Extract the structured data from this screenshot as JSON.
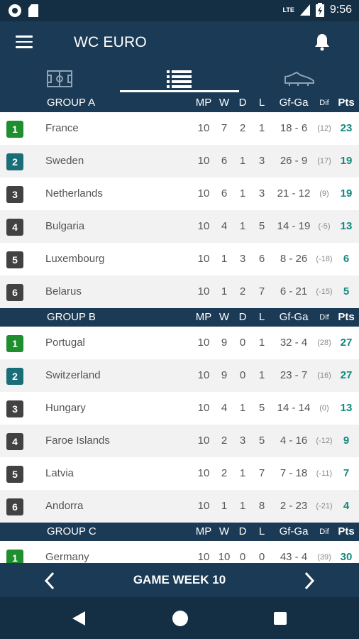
{
  "status": {
    "network": "LTE",
    "time": "9:56"
  },
  "app": {
    "title": "WC EURO"
  },
  "columns": {
    "mp": "MP",
    "w": "W",
    "d": "D",
    "l": "L",
    "gfga": "Gf-Ga",
    "dif": "Dif",
    "pts": "Pts"
  },
  "colors": {
    "rank1": "#1e8e2e",
    "rank2": "#1a6e78",
    "rank_default": "#424242",
    "header": "#1b3a55",
    "pts": "#12897e"
  },
  "groups": [
    {
      "name": "GROUP A",
      "rows": [
        {
          "rank": "1",
          "team": "France",
          "mp": "10",
          "w": "7",
          "d": "2",
          "l": "1",
          "gfga": "18 - 6",
          "dif": "(12)",
          "pts": "23"
        },
        {
          "rank": "2",
          "team": "Sweden",
          "mp": "10",
          "w": "6",
          "d": "1",
          "l": "3",
          "gfga": "26 - 9",
          "dif": "(17)",
          "pts": "19"
        },
        {
          "rank": "3",
          "team": "Netherlands",
          "mp": "10",
          "w": "6",
          "d": "1",
          "l": "3",
          "gfga": "21 - 12",
          "dif": "(9)",
          "pts": "19"
        },
        {
          "rank": "4",
          "team": "Bulgaria",
          "mp": "10",
          "w": "4",
          "d": "1",
          "l": "5",
          "gfga": "14 - 19",
          "dif": "(-5)",
          "pts": "13"
        },
        {
          "rank": "5",
          "team": "Luxembourg",
          "mp": "10",
          "w": "1",
          "d": "3",
          "l": "6",
          "gfga": "8 - 26",
          "dif": "(-18)",
          "pts": "6"
        },
        {
          "rank": "6",
          "team": "Belarus",
          "mp": "10",
          "w": "1",
          "d": "2",
          "l": "7",
          "gfga": "6 - 21",
          "dif": "(-15)",
          "pts": "5"
        }
      ]
    },
    {
      "name": "GROUP B",
      "rows": [
        {
          "rank": "1",
          "team": "Portugal",
          "mp": "10",
          "w": "9",
          "d": "0",
          "l": "1",
          "gfga": "32 - 4",
          "dif": "(28)",
          "pts": "27"
        },
        {
          "rank": "2",
          "team": "Switzerland",
          "mp": "10",
          "w": "9",
          "d": "0",
          "l": "1",
          "gfga": "23 - 7",
          "dif": "(16)",
          "pts": "27"
        },
        {
          "rank": "3",
          "team": "Hungary",
          "mp": "10",
          "w": "4",
          "d": "1",
          "l": "5",
          "gfga": "14 - 14",
          "dif": "(0)",
          "pts": "13"
        },
        {
          "rank": "4",
          "team": "Faroe Islands",
          "mp": "10",
          "w": "2",
          "d": "3",
          "l": "5",
          "gfga": "4 - 16",
          "dif": "(-12)",
          "pts": "9"
        },
        {
          "rank": "5",
          "team": "Latvia",
          "mp": "10",
          "w": "2",
          "d": "1",
          "l": "7",
          "gfga": "7 - 18",
          "dif": "(-11)",
          "pts": "7"
        },
        {
          "rank": "6",
          "team": "Andorra",
          "mp": "10",
          "w": "1",
          "d": "1",
          "l": "8",
          "gfga": "2 - 23",
          "dif": "(-21)",
          "pts": "4"
        }
      ]
    },
    {
      "name": "GROUP C",
      "rows": [
        {
          "rank": "1",
          "team": "Germany",
          "mp": "10",
          "w": "10",
          "d": "0",
          "l": "0",
          "gfga": "43 - 4",
          "dif": "(39)",
          "pts": "30"
        }
      ]
    }
  ],
  "footer": {
    "game_week": "GAME WEEK 10"
  }
}
